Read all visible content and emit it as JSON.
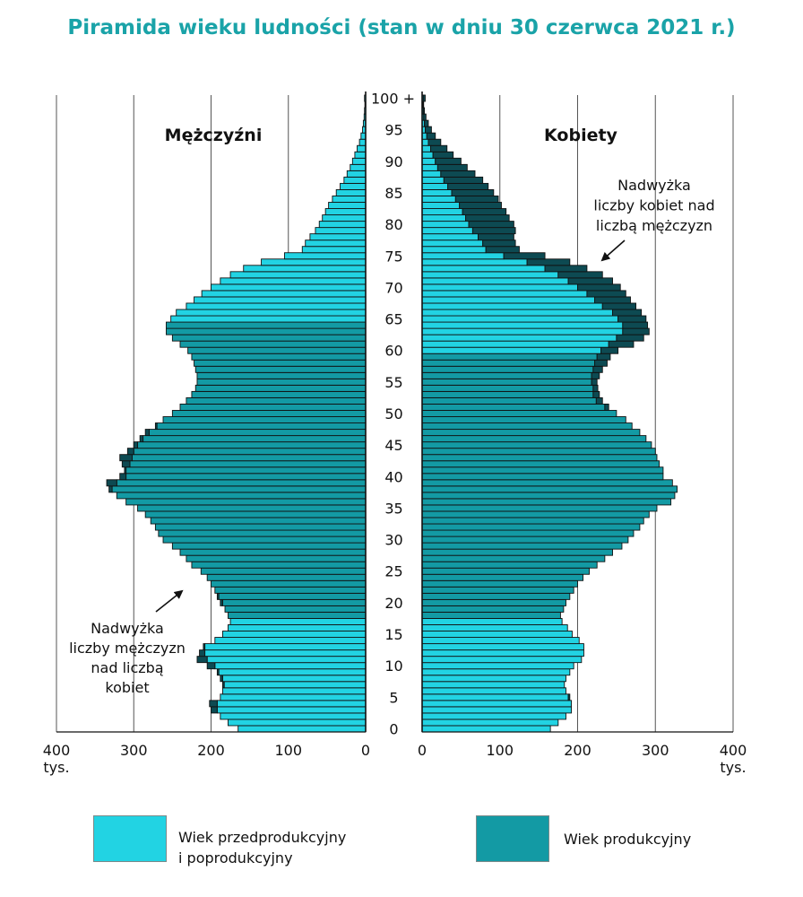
{
  "chart_data": {
    "type": "bar",
    "subtype": "population-pyramid",
    "title": "Piramida wieku ludności (stan w dniu 30 czerwca 2021 r.)",
    "left_panel_label": "Mężczyźni",
    "right_panel_label": "Kobiety",
    "x_ticks": [
      "400",
      "300",
      "200",
      "100",
      "0"
    ],
    "x_ticks_right": [
      "0",
      "100",
      "200",
      "300",
      "400"
    ],
    "x_unit": "tys.",
    "xlim": [
      0,
      400
    ],
    "age_ticks": [
      "0",
      "5",
      "10",
      "15",
      "20",
      "25",
      "30",
      "35",
      "40",
      "45",
      "50",
      "55",
      "60",
      "65",
      "70",
      "75",
      "80",
      "85",
      "90",
      "95",
      "100 +"
    ],
    "age_range": [
      0,
      100
    ],
    "grid": true,
    "categories_note": "ages 0..100+ (one bar per year of age)",
    "male_values": [
      165,
      178,
      188,
      200,
      202,
      188,
      185,
      185,
      188,
      192,
      205,
      218,
      215,
      210,
      195,
      185,
      178,
      175,
      178,
      182,
      188,
      192,
      195,
      200,
      205,
      213,
      225,
      232,
      240,
      250,
      262,
      268,
      272,
      278,
      285,
      295,
      310,
      322,
      332,
      335,
      318,
      312,
      315,
      318,
      308,
      300,
      292,
      285,
      272,
      262,
      250,
      240,
      232,
      225,
      220,
      218,
      218,
      220,
      222,
      225,
      230,
      240,
      250,
      258,
      258,
      252,
      245,
      232,
      222,
      212,
      200,
      188,
      175,
      158,
      135,
      105,
      82,
      78,
      72,
      65,
      60,
      56,
      52,
      48,
      43,
      38,
      33,
      28,
      24,
      20,
      17,
      14,
      11,
      8,
      6,
      4,
      3,
      2,
      1.5,
      1,
      1.5
    ],
    "female_values": [
      165,
      175,
      185,
      192,
      192,
      190,
      185,
      183,
      185,
      190,
      195,
      205,
      208,
      208,
      202,
      193,
      187,
      180,
      178,
      182,
      185,
      190,
      195,
      200,
      207,
      215,
      225,
      235,
      245,
      257,
      265,
      272,
      280,
      285,
      292,
      302,
      320,
      325,
      328,
      322,
      310,
      310,
      305,
      302,
      300,
      295,
      288,
      280,
      270,
      262,
      250,
      240,
      232,
      228,
      226,
      225,
      228,
      232,
      238,
      242,
      252,
      272,
      285,
      292,
      290,
      288,
      282,
      275,
      268,
      262,
      255,
      245,
      232,
      212,
      190,
      158,
      125,
      120,
      118,
      120,
      118,
      112,
      108,
      102,
      98,
      92,
      85,
      78,
      68,
      58,
      50,
      40,
      32,
      24,
      17,
      12,
      8,
      5,
      3,
      2,
      4
    ],
    "male_excess_values": [
      0,
      0,
      0,
      8,
      10,
      0,
      0,
      2,
      3,
      2,
      10,
      13,
      7,
      2,
      0,
      0,
      0,
      0,
      0,
      0,
      3,
      2,
      0,
      0,
      0,
      0,
      0,
      0,
      0,
      0,
      0,
      0,
      0,
      0,
      0,
      0,
      0,
      0,
      4,
      13,
      8,
      2,
      10,
      16,
      8,
      5,
      4,
      5,
      2,
      0,
      0,
      0,
      0,
      0,
      0,
      0,
      0,
      0,
      0,
      0,
      0,
      0,
      0,
      0,
      0,
      0,
      0,
      0,
      0,
      0,
      0,
      0,
      0,
      0,
      0,
      0,
      0,
      0,
      0,
      0,
      0,
      0,
      0,
      0,
      0,
      0,
      0,
      0,
      0,
      0,
      0,
      0,
      0,
      0,
      0,
      0,
      0,
      0,
      0,
      0,
      0
    ],
    "female_excess_values": [
      0,
      0,
      0,
      0,
      0,
      2,
      0,
      0,
      0,
      0,
      0,
      0,
      0,
      0,
      0,
      0,
      0,
      0,
      0,
      0,
      0,
      0,
      0,
      0,
      0,
      0,
      0,
      0,
      0,
      0,
      0,
      0,
      0,
      0,
      0,
      0,
      0,
      0,
      0,
      0,
      0,
      0,
      0,
      0,
      0,
      0,
      0,
      0,
      0,
      0,
      0,
      5,
      8,
      8,
      6,
      7,
      10,
      12,
      16,
      17,
      22,
      32,
      35,
      34,
      32,
      36,
      37,
      43,
      46,
      50,
      55,
      57,
      57,
      54,
      55,
      53,
      43,
      42,
      46,
      55,
      58,
      56,
      56,
      54,
      55,
      54,
      52,
      50,
      44,
      38,
      33,
      26,
      21,
      16,
      11,
      8,
      5,
      3,
      1.5,
      1,
      2.5
    ],
    "working_age": {
      "male": [
        18,
        64
      ],
      "female": [
        18,
        59
      ]
    },
    "annotations": {
      "female_excess": [
        "Nadwyżka",
        "liczby kobiet nad",
        "liczbą mężczyzn"
      ],
      "male_excess": [
        "Nadwyżka",
        "liczby mężczyzn",
        "nad liczbą",
        "kobiet"
      ]
    },
    "legend": {
      "placement": "bottom",
      "items": [
        {
          "lines": [
            "Wiek przedprodukcyjny",
            "i poprodukcyjny"
          ],
          "color": "#22d3e3"
        },
        {
          "lines": [
            "Wiek produkcyjny"
          ],
          "color": "#139aa4"
        }
      ]
    },
    "colors": {
      "non_working": "#22d3e3",
      "working": "#139aa4",
      "excess": "#0d4a52",
      "outline": "#111111",
      "grid": "#555555",
      "title": "#1aa3a8"
    }
  }
}
